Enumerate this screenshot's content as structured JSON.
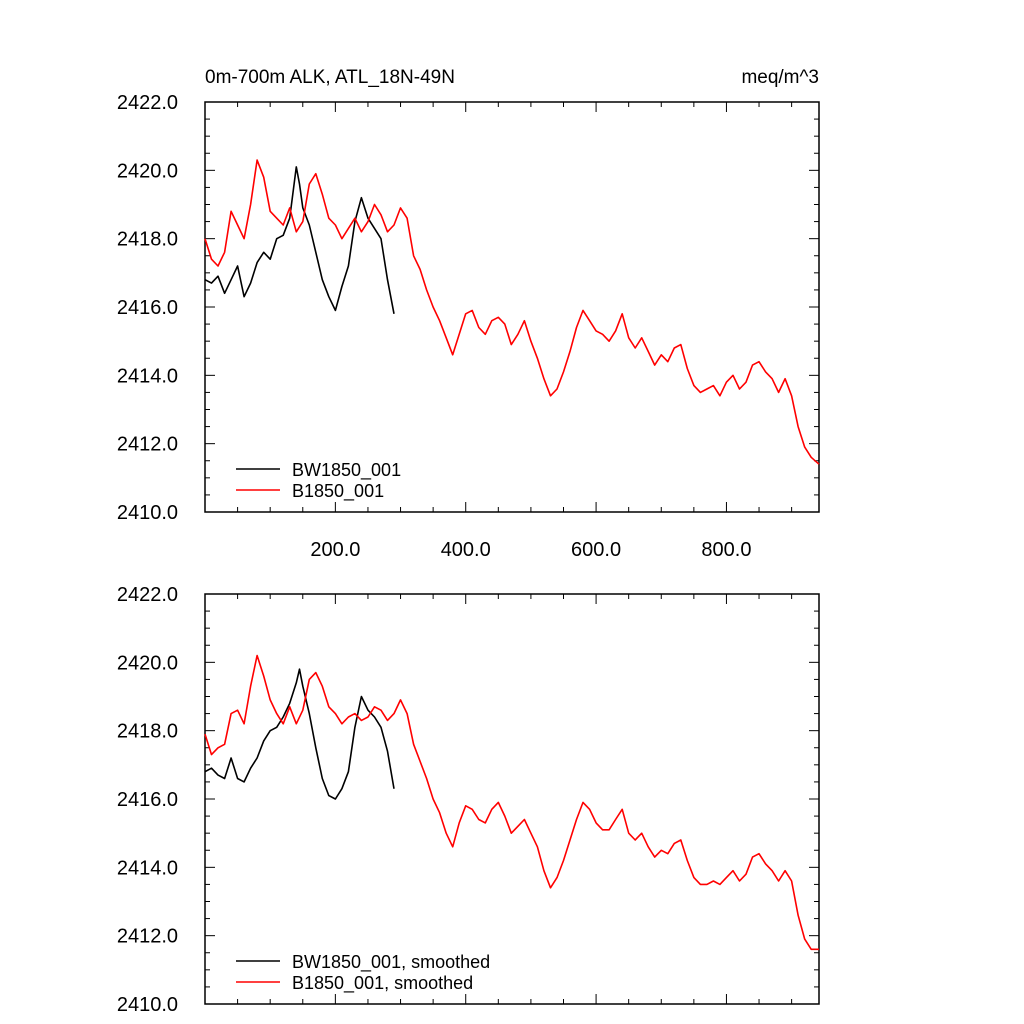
{
  "chart_data": [
    {
      "type": "line",
      "title_left": "0m-700m ALK, ATL_18N-49N",
      "title_right": "meq/m^3",
      "xlabel": "",
      "ylabel": "",
      "xlim": [
        0,
        942
      ],
      "ylim": [
        2410,
        2422
      ],
      "x_ticks": [
        200,
        400,
        600,
        800
      ],
      "x_tick_labels": [
        "200.0",
        "400.0",
        "600.0",
        "800.0"
      ],
      "y_ticks": [
        2410,
        2412,
        2414,
        2416,
        2418,
        2420,
        2422
      ],
      "y_tick_labels": [
        "2410.0",
        "2412.0",
        "2414.0",
        "2416.0",
        "2418.0",
        "2420.0",
        "2422.0"
      ],
      "legend_position": "bottom-left",
      "series": [
        {
          "name": "BW1850_001",
          "color": "#000000",
          "x": [
            0,
            10,
            20,
            30,
            40,
            50,
            60,
            70,
            80,
            90,
            100,
            110,
            120,
            130,
            140,
            145,
            150,
            160,
            170,
            180,
            190,
            200,
            210,
            220,
            230,
            240,
            250,
            260,
            270,
            280,
            290
          ],
          "y": [
            2416.8,
            2416.7,
            2416.9,
            2416.4,
            2416.8,
            2417.2,
            2416.3,
            2416.7,
            2417.3,
            2417.6,
            2417.4,
            2418.0,
            2418.1,
            2418.6,
            2420.1,
            2419.6,
            2418.9,
            2418.4,
            2417.6,
            2416.8,
            2416.3,
            2415.9,
            2416.6,
            2417.2,
            2418.5,
            2419.2,
            2418.6,
            2418.3,
            2418.0,
            2416.8,
            2415.8
          ]
        },
        {
          "name": "B1850_001",
          "color": "#ff0000",
          "x": [
            0,
            10,
            20,
            30,
            40,
            50,
            60,
            70,
            80,
            90,
            100,
            110,
            120,
            130,
            140,
            150,
            160,
            170,
            180,
            190,
            200,
            210,
            220,
            230,
            240,
            250,
            260,
            270,
            280,
            290,
            300,
            310,
            320,
            330,
            340,
            350,
            360,
            370,
            380,
            390,
            400,
            410,
            420,
            430,
            440,
            450,
            460,
            470,
            480,
            490,
            500,
            510,
            520,
            530,
            540,
            550,
            560,
            570,
            580,
            590,
            600,
            610,
            620,
            630,
            640,
            650,
            660,
            670,
            680,
            690,
            700,
            710,
            720,
            730,
            740,
            750,
            760,
            770,
            780,
            790,
            800,
            810,
            820,
            830,
            840,
            850,
            860,
            870,
            880,
            890,
            900,
            910,
            920,
            930,
            942
          ],
          "y": [
            2418.0,
            2417.4,
            2417.2,
            2417.6,
            2418.8,
            2418.4,
            2418.0,
            2419.0,
            2420.3,
            2419.8,
            2418.8,
            2418.6,
            2418.4,
            2418.9,
            2418.2,
            2418.5,
            2419.6,
            2419.9,
            2419.3,
            2418.6,
            2418.4,
            2418.0,
            2418.3,
            2418.6,
            2418.2,
            2418.5,
            2419.0,
            2418.7,
            2418.2,
            2418.4,
            2418.9,
            2418.6,
            2417.5,
            2417.1,
            2416.5,
            2416.0,
            2415.6,
            2415.1,
            2414.6,
            2415.2,
            2415.8,
            2415.9,
            2415.4,
            2415.2,
            2415.6,
            2415.7,
            2415.5,
            2414.9,
            2415.2,
            2415.6,
            2415.0,
            2414.5,
            2413.9,
            2413.4,
            2413.6,
            2414.1,
            2414.7,
            2415.4,
            2415.9,
            2415.6,
            2415.3,
            2415.2,
            2415.0,
            2415.3,
            2415.8,
            2415.1,
            2414.8,
            2415.1,
            2414.7,
            2414.3,
            2414.6,
            2414.4,
            2414.8,
            2414.9,
            2414.2,
            2413.7,
            2413.5,
            2413.6,
            2413.7,
            2413.4,
            2413.8,
            2414.0,
            2413.6,
            2413.8,
            2414.3,
            2414.4,
            2414.1,
            2413.9,
            2413.5,
            2413.9,
            2413.4,
            2412.5,
            2411.9,
            2411.6,
            2411.4
          ]
        }
      ]
    },
    {
      "type": "line",
      "title_left": "",
      "title_right": "",
      "xlabel": "",
      "ylabel": "",
      "xlim": [
        0,
        942
      ],
      "ylim": [
        2410,
        2422
      ],
      "x_ticks": [
        200,
        400,
        600,
        800
      ],
      "x_tick_labels": [],
      "y_ticks": [
        2410,
        2412,
        2414,
        2416,
        2418,
        2420,
        2422
      ],
      "y_tick_labels": [
        "2410.0",
        "2412.0",
        "2414.0",
        "2416.0",
        "2418.0",
        "2420.0",
        "2422.0"
      ],
      "legend_position": "bottom-left",
      "series": [
        {
          "name": "BW1850_001, smoothed",
          "color": "#000000",
          "x": [
            0,
            10,
            20,
            30,
            40,
            50,
            60,
            70,
            80,
            90,
            100,
            110,
            120,
            130,
            140,
            145,
            150,
            160,
            170,
            180,
            190,
            200,
            210,
            220,
            230,
            240,
            250,
            260,
            270,
            280,
            290
          ],
          "y": [
            2416.8,
            2416.9,
            2416.7,
            2416.6,
            2417.2,
            2416.6,
            2416.5,
            2416.9,
            2417.2,
            2417.7,
            2418.0,
            2418.1,
            2418.4,
            2418.8,
            2419.4,
            2419.8,
            2419.3,
            2418.5,
            2417.5,
            2416.6,
            2416.1,
            2416.0,
            2416.3,
            2416.8,
            2418.1,
            2419.0,
            2418.6,
            2418.4,
            2418.1,
            2417.4,
            2416.3
          ]
        },
        {
          "name": "B1850_001, smoothed",
          "color": "#ff0000",
          "x": [
            0,
            10,
            20,
            30,
            40,
            50,
            60,
            70,
            80,
            90,
            100,
            110,
            120,
            130,
            140,
            150,
            160,
            170,
            180,
            190,
            200,
            210,
            220,
            230,
            240,
            250,
            260,
            270,
            280,
            290,
            300,
            310,
            320,
            330,
            340,
            350,
            360,
            370,
            380,
            390,
            400,
            410,
            420,
            430,
            440,
            450,
            460,
            470,
            480,
            490,
            500,
            510,
            520,
            530,
            540,
            550,
            560,
            570,
            580,
            590,
            600,
            610,
            620,
            630,
            640,
            650,
            660,
            670,
            680,
            690,
            700,
            710,
            720,
            730,
            740,
            750,
            760,
            770,
            780,
            790,
            800,
            810,
            820,
            830,
            840,
            850,
            860,
            870,
            880,
            890,
            900,
            910,
            920,
            930,
            942
          ],
          "y": [
            2417.9,
            2417.3,
            2417.5,
            2417.6,
            2418.5,
            2418.6,
            2418.2,
            2419.3,
            2420.2,
            2419.6,
            2418.9,
            2418.5,
            2418.2,
            2418.7,
            2418.2,
            2418.6,
            2419.5,
            2419.7,
            2419.3,
            2418.7,
            2418.5,
            2418.2,
            2418.4,
            2418.5,
            2418.3,
            2418.4,
            2418.7,
            2418.6,
            2418.3,
            2418.5,
            2418.9,
            2418.5,
            2417.6,
            2417.1,
            2416.6,
            2416.0,
            2415.6,
            2415.0,
            2414.6,
            2415.3,
            2415.8,
            2415.7,
            2415.4,
            2415.3,
            2415.7,
            2415.9,
            2415.5,
            2415.0,
            2415.2,
            2415.4,
            2415.0,
            2414.6,
            2413.9,
            2413.4,
            2413.7,
            2414.2,
            2414.8,
            2415.4,
            2415.9,
            2415.7,
            2415.3,
            2415.1,
            2415.1,
            2415.4,
            2415.7,
            2415.0,
            2414.8,
            2415.0,
            2414.6,
            2414.3,
            2414.5,
            2414.4,
            2414.7,
            2414.8,
            2414.2,
            2413.7,
            2413.5,
            2413.5,
            2413.6,
            2413.5,
            2413.7,
            2413.9,
            2413.6,
            2413.8,
            2414.3,
            2414.4,
            2414.1,
            2413.9,
            2413.6,
            2413.9,
            2413.6,
            2412.6,
            2411.9,
            2411.6,
            2411.6
          ]
        }
      ]
    }
  ]
}
